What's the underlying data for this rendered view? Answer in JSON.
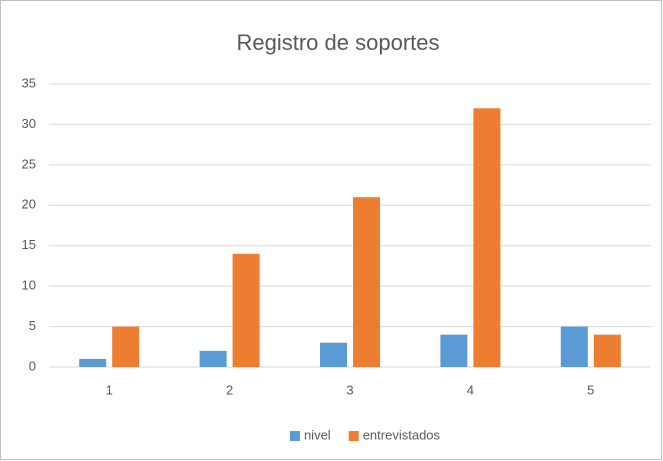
{
  "chart_data": {
    "type": "bar",
    "title": "Registro de soportes",
    "categories": [
      "1",
      "2",
      "3",
      "4",
      "5"
    ],
    "series": [
      {
        "name": "nivel",
        "color": "#5b9bd5",
        "values": [
          1,
          2,
          3,
          4,
          5
        ]
      },
      {
        "name": "entrevistados",
        "color": "#ed7d31",
        "values": [
          5,
          14,
          21,
          32,
          4
        ]
      }
    ],
    "ylim": [
      0,
      35
    ],
    "yticks": [
      0,
      5,
      10,
      15,
      20,
      25,
      30,
      35
    ],
    "grid": true,
    "legend": "bottom"
  }
}
